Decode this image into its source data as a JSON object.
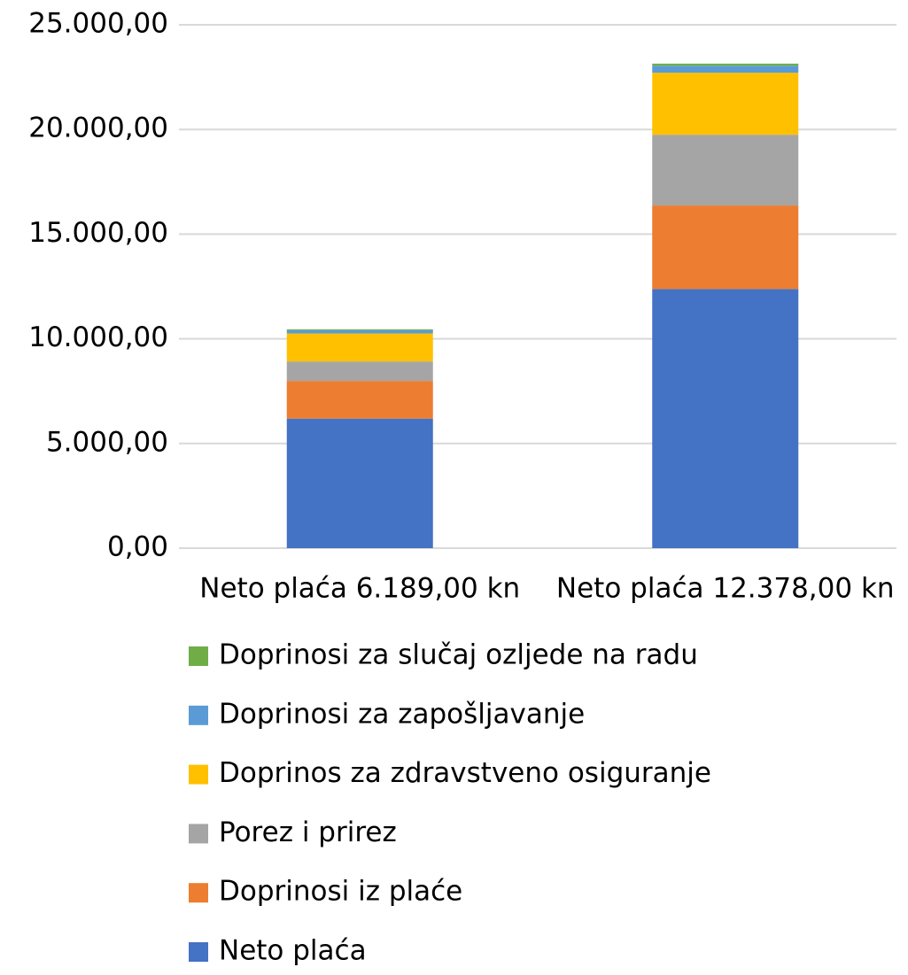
{
  "chart_data": {
    "type": "stacked_bar",
    "categories": [
      "Neto plaća  6.189,00 kn",
      "Neto plaća  12.378,00 kn"
    ],
    "series": [
      {
        "name": "Neto plaća",
        "color": "#4472c4",
        "values": [
          6189,
          12378
        ]
      },
      {
        "name": "Doprinosi iz plaće",
        "color": "#ed7d31",
        "values": [
          1800,
          3990
        ]
      },
      {
        "name": "Porez i prirez",
        "color": "#a5a5a5",
        "values": [
          930,
          3380
        ]
      },
      {
        "name": "Doprinos za zdravstveno osiguranje",
        "color": "#ffc000",
        "values": [
          1338,
          2962
        ]
      },
      {
        "name": "Doprinosi za zapošljavanje",
        "color": "#5b9bd5",
        "values": [
          152,
          336
        ]
      },
      {
        "name": "Doprinosi za slučaj ozljede na radu",
        "color": "#70ad47",
        "values": [
          45,
          99
        ]
      }
    ],
    "ylim": [
      0,
      25000
    ],
    "yticks": [
      {
        "value": 0,
        "label": "0,00"
      },
      {
        "value": 5000,
        "label": "5.000,00"
      },
      {
        "value": 10000,
        "label": "10.000,00"
      },
      {
        "value": 15000,
        "label": "15.000,00"
      },
      {
        "value": 20000,
        "label": "20.000,00"
      },
      {
        "value": 25000,
        "label": "25.000,00"
      }
    ],
    "grid": true,
    "legend": "bottom"
  }
}
